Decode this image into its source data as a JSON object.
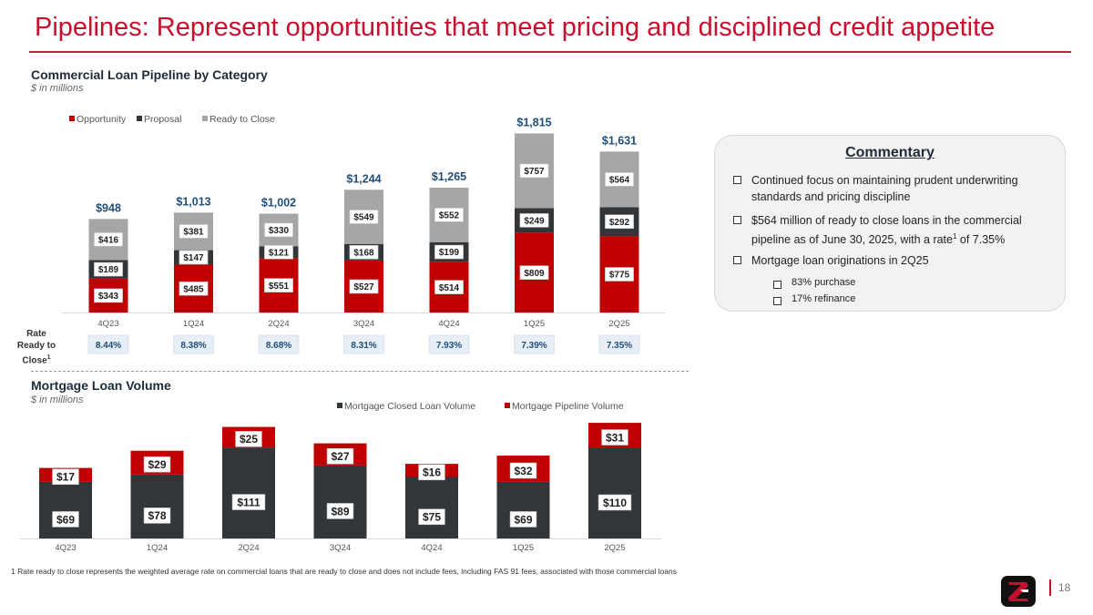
{
  "title": "Pipelines: Represent opportunities that meet pricing and disciplined credit appetite",
  "colors": {
    "accent": "#c8102e",
    "opportunity": "#c00000",
    "proposal": "#323639",
    "ready": "#a6a6a6",
    "label_blue": "#1f4e79",
    "rate_box": "#e7eef6"
  },
  "commercial": {
    "title": "Commercial Loan Pipeline by Category",
    "subtitle": "$ in millions",
    "rate_label": "Rate Ready to Close",
    "rate_label_sup": "1"
  },
  "mortgage": {
    "title": "Mortgage Loan Volume",
    "subtitle": "$ in millions"
  },
  "commentary": {
    "title": "Commentary",
    "bullet1": "Continued focus on maintaining prudent underwriting standards and pricing discipline",
    "bullet2_pre": "$564 million of ready to close loans in the commercial pipeline as of June 30, 2025, with a rate",
    "bullet2_sup": "1",
    "bullet2_post": " of 7.35%",
    "bullet3": "Mortgage loan originations in 2Q25",
    "sub1": "83% purchase",
    "sub2": "17% refinance"
  },
  "footnote": "1 Rate ready to close represents the weighted average rate on commercial loans that are ready to close and does not include fees, including FAS 91 fees, associated with those commercial loans",
  "page_number": "18",
  "chart_data": [
    {
      "type": "bar",
      "stacked": true,
      "title": "Commercial Loan Pipeline by Category",
      "categories": [
        "4Q23",
        "1Q24",
        "2Q24",
        "3Q24",
        "4Q24",
        "1Q25",
        "2Q25"
      ],
      "series": [
        {
          "name": "Opportunity",
          "values": [
            343,
            485,
            551,
            527,
            514,
            809,
            775
          ],
          "labels": [
            "$343",
            "$485",
            "$551",
            "$527",
            "$514",
            "$809",
            "$775"
          ]
        },
        {
          "name": "Proposal",
          "values": [
            189,
            147,
            121,
            168,
            199,
            249,
            292
          ],
          "labels": [
            "$189",
            "$147",
            "$121",
            "$168",
            "$199",
            "$249",
            "$292"
          ]
        },
        {
          "name": "Ready to Close",
          "values": [
            416,
            381,
            330,
            549,
            552,
            757,
            564
          ],
          "labels": [
            "$416",
            "$381",
            "$330",
            "$549",
            "$552",
            "$757",
            "$564"
          ]
        }
      ],
      "totals": [
        948,
        1013,
        1002,
        1244,
        1265,
        1815,
        1631
      ],
      "total_labels": [
        "$948",
        "$1,013",
        "$1,002",
        "$1,244",
        "$1,265",
        "$1,815",
        "$1,631"
      ],
      "rates": [
        "8.44%",
        "8.38%",
        "8.68%",
        "8.31%",
        "7.93%",
        "7.39%",
        "7.35%"
      ],
      "legend_position": "top-left",
      "ylim": [
        0,
        1900
      ]
    },
    {
      "type": "bar",
      "stacked": true,
      "title": "Mortgage Loan Volume",
      "categories": [
        "4Q23",
        "1Q24",
        "2Q24",
        "3Q24",
        "4Q24",
        "1Q25",
        "2Q25"
      ],
      "series": [
        {
          "name": "Mortgage Closed Loan Volume",
          "values": [
            69,
            78,
            111,
            89,
            75,
            69,
            110
          ],
          "labels": [
            "$69",
            "$78",
            "$111",
            "$89",
            "$75",
            "$69",
            "$110"
          ]
        },
        {
          "name": "Mortgage Pipeline Volume",
          "values": [
            17,
            29,
            25,
            27,
            16,
            32,
            31
          ],
          "labels": [
            "$17",
            "$29",
            "$25",
            "$27",
            "$16",
            "$32",
            "$31"
          ]
        }
      ],
      "legend_position": "top-center",
      "ylim": [
        0,
        145
      ]
    }
  ]
}
